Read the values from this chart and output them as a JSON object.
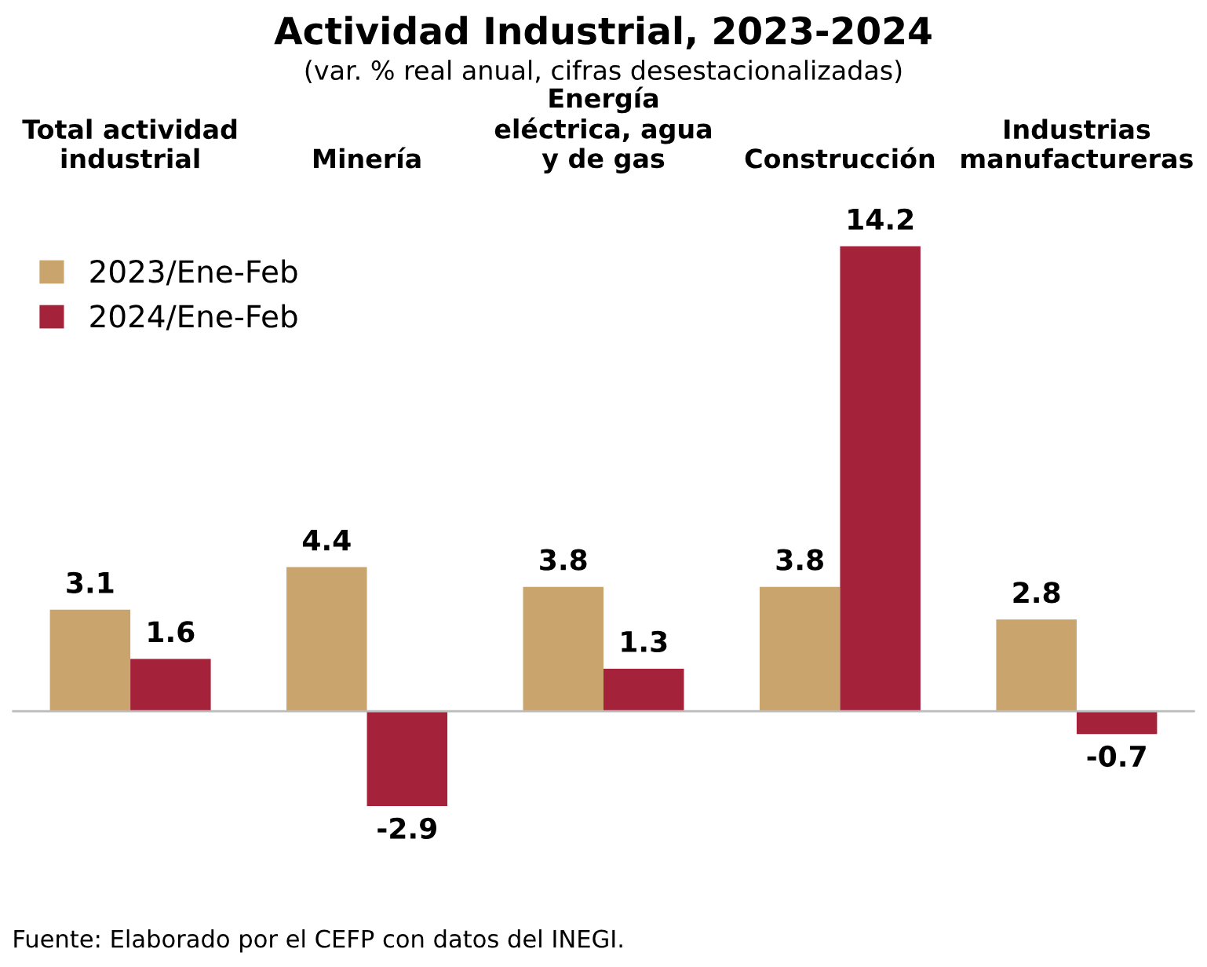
{
  "chart_data": {
    "type": "bar",
    "title": "Actividad Industrial, 2023-2024",
    "subtitle": "(var. % real anual, cifras desestacionalizadas)",
    "categories": [
      "Total actividad\nindustrial",
      "Minería",
      "Energía\neléctrica, agua\ny de gas",
      "Construcción",
      "Industrias\nmanufactureras"
    ],
    "series": [
      {
        "name": "2023/Ene-Feb",
        "color": "#c9a46c",
        "values": [
          3.1,
          4.4,
          3.8,
          3.8,
          2.8
        ]
      },
      {
        "name": "2024/Ene-Feb",
        "color": "#a4233b",
        "values": [
          1.6,
          -2.9,
          1.3,
          14.2,
          -0.7
        ]
      }
    ],
    "data_labels": true,
    "legend": "top left",
    "grid": false,
    "annotations": [
      "Fuente: Elaborado por el CEFP con datos del INEGI."
    ]
  }
}
